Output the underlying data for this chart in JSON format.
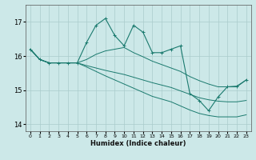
{
  "xlabel": "Humidex (Indice chaleur)",
  "bg_color": "#cce8e8",
  "grid_color": "#aacccc",
  "line_color": "#1a7a6e",
  "ylim": [
    13.8,
    17.5
  ],
  "xlim": [
    -0.5,
    23.5
  ],
  "yticks": [
    14,
    15,
    16,
    17
  ],
  "xticks": [
    0,
    1,
    2,
    3,
    4,
    5,
    6,
    7,
    8,
    9,
    10,
    11,
    12,
    13,
    14,
    15,
    16,
    17,
    18,
    19,
    20,
    21,
    22,
    23
  ],
  "series": [
    [
      16.2,
      15.9,
      15.8,
      15.8,
      15.8,
      15.8,
      16.4,
      16.9,
      17.1,
      16.6,
      16.3,
      16.9,
      16.7,
      16.1,
      16.1,
      16.2,
      16.3,
      14.9,
      14.7,
      14.4,
      14.8,
      15.1,
      15.1,
      15.3
    ],
    [
      16.2,
      15.9,
      15.8,
      15.8,
      15.8,
      15.8,
      15.9,
      16.05,
      16.15,
      16.2,
      16.25,
      16.1,
      15.98,
      15.85,
      15.75,
      15.65,
      15.55,
      15.4,
      15.28,
      15.18,
      15.1,
      15.1,
      15.12,
      15.3
    ],
    [
      16.2,
      15.9,
      15.8,
      15.8,
      15.8,
      15.8,
      15.72,
      15.65,
      15.58,
      15.52,
      15.46,
      15.38,
      15.3,
      15.22,
      15.15,
      15.08,
      14.98,
      14.88,
      14.78,
      14.72,
      14.68,
      14.66,
      14.66,
      14.7
    ],
    [
      16.2,
      15.9,
      15.8,
      15.8,
      15.8,
      15.8,
      15.68,
      15.55,
      15.42,
      15.3,
      15.18,
      15.06,
      14.94,
      14.82,
      14.74,
      14.66,
      14.54,
      14.42,
      14.32,
      14.26,
      14.22,
      14.22,
      14.22,
      14.28
    ]
  ]
}
